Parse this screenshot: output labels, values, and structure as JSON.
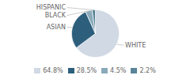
{
  "chart_data": {
    "type": "pie",
    "categories": [
      "WHITE",
      "ASIAN",
      "BLACK",
      "HISPANIC"
    ],
    "values": [
      64.8,
      28.5,
      4.5,
      2.2
    ],
    "value_labels": [
      "64.8%",
      "28.5%",
      "4.5%",
      "2.2%"
    ],
    "colors": [
      "#d0d9e4",
      "#2d5f7c",
      "#8aaabb",
      "#5a8499"
    ],
    "legend": "bottom"
  }
}
